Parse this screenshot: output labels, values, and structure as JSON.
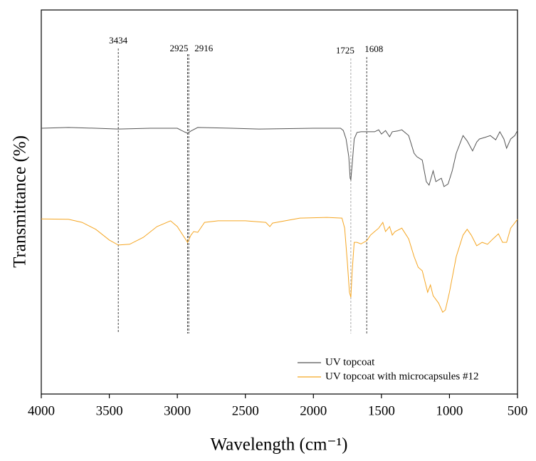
{
  "chart_data": {
    "type": "line",
    "xlabel": "Wavelength (cm⁻¹)",
    "ylabel": "Transmittance (%)",
    "xlim": [
      4000,
      500
    ],
    "xticks": [
      4000,
      3500,
      3000,
      2500,
      2000,
      1500,
      1000,
      500
    ],
    "ylim": [
      0,
      100
    ],
    "legend": "lower right",
    "annotations": [
      3434,
      2925,
      2916,
      1725,
      1608
    ],
    "series": [
      {
        "name": "UV topcoat",
        "color": "#555555",
        "x": [
          4000,
          3800,
          3600,
          3434,
          3200,
          3000,
          2950,
          2925,
          2900,
          2850,
          2600,
          2400,
          2000,
          1800,
          1780,
          1760,
          1740,
          1730,
          1725,
          1715,
          1700,
          1680,
          1650,
          1608,
          1550,
          1520,
          1500,
          1470,
          1440,
          1420,
          1380,
          1350,
          1300,
          1260,
          1240,
          1200,
          1170,
          1150,
          1120,
          1100,
          1060,
          1040,
          1010,
          980,
          950,
          900,
          870,
          830,
          800,
          780,
          740,
          700,
          660,
          630,
          600,
          580,
          550,
          520,
          500
        ],
        "values": [
          69.2,
          69.4,
          69.2,
          69.0,
          69.2,
          69.2,
          68.3,
          67.9,
          68.5,
          69.4,
          69.2,
          69.0,
          69.2,
          69.2,
          68.6,
          66.4,
          61.8,
          56.2,
          55.8,
          59.9,
          66.4,
          68.1,
          68.3,
          68.3,
          68.3,
          68.8,
          67.7,
          68.6,
          67.0,
          68.3,
          68.5,
          68.8,
          67.3,
          62.7,
          61.8,
          60.9,
          55.3,
          54.4,
          58.1,
          55.3,
          56.2,
          54.0,
          54.7,
          58.1,
          62.7,
          67.3,
          65.9,
          63.3,
          65.6,
          66.4,
          66.8,
          67.3,
          66.2,
          68.3,
          66.4,
          64.0,
          66.4,
          67.3,
          68.6
        ]
      },
      {
        "name": "UV topcoat with microcapsules #12",
        "color": "#f5a623",
        "x": [
          4000,
          3800,
          3700,
          3600,
          3500,
          3434,
          3350,
          3250,
          3150,
          3050,
          3000,
          2960,
          2925,
          2900,
          2880,
          2850,
          2800,
          2700,
          2500,
          2350,
          2320,
          2300,
          2100,
          1900,
          1790,
          1770,
          1750,
          1735,
          1725,
          1715,
          1700,
          1680,
          1650,
          1608,
          1580,
          1550,
          1520,
          1490,
          1470,
          1440,
          1420,
          1400,
          1350,
          1300,
          1260,
          1230,
          1200,
          1160,
          1140,
          1120,
          1080,
          1050,
          1030,
          1000,
          950,
          900,
          870,
          840,
          800,
          760,
          720,
          680,
          640,
          610,
          580,
          550,
          500
        ],
        "values": [
          45.6,
          45.5,
          44.7,
          42.9,
          40.1,
          38.8,
          39.0,
          40.8,
          43.6,
          45.1,
          43.6,
          41.4,
          39.5,
          41.4,
          42.3,
          42.1,
          44.7,
          45.1,
          45.1,
          44.7,
          43.6,
          44.5,
          45.8,
          46.0,
          45.8,
          43.2,
          34.0,
          26.5,
          25.2,
          32.1,
          39.5,
          39.5,
          39.1,
          39.9,
          41.4,
          42.3,
          43.2,
          44.7,
          42.3,
          43.6,
          41.4,
          42.3,
          43.2,
          40.4,
          35.8,
          33.0,
          32.1,
          26.5,
          28.4,
          25.6,
          23.7,
          21.3,
          21.9,
          26.5,
          35.8,
          41.4,
          42.9,
          41.4,
          38.6,
          39.5,
          39.0,
          40.4,
          41.7,
          39.5,
          39.5,
          43.2,
          45.5
        ]
      }
    ]
  }
}
